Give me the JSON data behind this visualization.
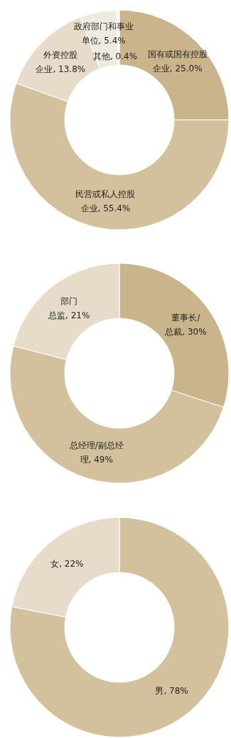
{
  "chart_data": [
    {
      "type": "donut",
      "categories": [
        "国有或国有控股企业",
        "民营或私人控股企业",
        "外资控股企业",
        "政府部门和事业单位",
        "其他"
      ],
      "values": [
        25.0,
        55.4,
        13.8,
        5.4,
        0.4
      ],
      "value_labels": [
        "25.0%",
        "55.4%",
        "13.8%",
        "5.4%",
        "0.4%"
      ],
      "colors": [
        "#c9b48b",
        "#d3c09d",
        "#e6dcc9",
        "#f0ebe1",
        "#faf8f3"
      ],
      "legend": false
    },
    {
      "type": "donut",
      "categories": [
        "董事长/总裁",
        "总经理/副总经理",
        "部门总监"
      ],
      "values": [
        30,
        49,
        21
      ],
      "value_labels": [
        "30%",
        "49%",
        "21%"
      ],
      "colors": [
        "#c9b48b",
        "#d3c09d",
        "#e6dcc9"
      ],
      "legend": false
    },
    {
      "type": "donut",
      "categories": [
        "男",
        "女"
      ],
      "values": [
        78,
        22
      ],
      "value_labels": [
        "78%",
        "22%"
      ],
      "colors": [
        "#d3c09d",
        "#e6dcc9"
      ],
      "legend": false
    }
  ]
}
